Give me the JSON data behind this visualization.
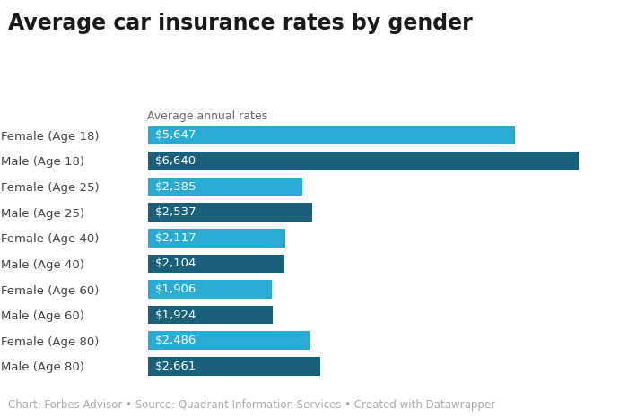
{
  "title": "Average car insurance rates by gender",
  "subtitle": "Average annual rates",
  "categories": [
    "Female (Age 18)",
    "Male (Age 18)",
    "Female (Age 25)",
    "Male (Age 25)",
    "Female (Age 40)",
    "Male (Age 40)",
    "Female (Age 60)",
    "Male (Age 60)",
    "Female (Age 80)",
    "Male (Age 80)"
  ],
  "values": [
    5647,
    6640,
    2385,
    2537,
    2117,
    2104,
    1906,
    1924,
    2486,
    2661
  ],
  "labels": [
    "$5,647",
    "$6,640",
    "$2,385",
    "$2,537",
    "$2,117",
    "$2,104",
    "$1,906",
    "$1,924",
    "$2,486",
    "$2,661"
  ],
  "bar_colors": [
    "#29ABD4",
    "#1B607A",
    "#29ABD4",
    "#1B607A",
    "#29ABD4",
    "#1B607A",
    "#29ABD4",
    "#1B607A",
    "#29ABD4",
    "#1B607A"
  ],
  "footnote": "Chart: Forbes Advisor • Source: Quadrant Information Services • Created with Datawrapper",
  "xlim": [
    0,
    7200
  ],
  "background_color": "#ffffff",
  "label_color": "#ffffff",
  "label_fontsize": 9.5,
  "title_fontsize": 17,
  "subtitle_fontsize": 9,
  "ytick_fontsize": 9.5,
  "footnote_fontsize": 8.5
}
